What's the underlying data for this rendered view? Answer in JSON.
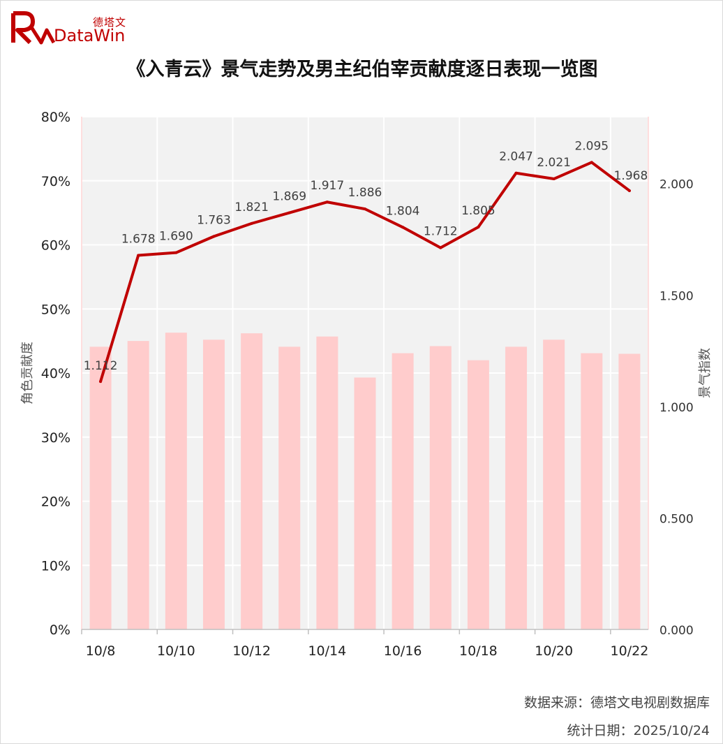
{
  "logo": {
    "cn": "德塔文",
    "en": "DataWin"
  },
  "title": "《入青云》景气走势及男主纪伯宰贡献度逐日表现一览图",
  "source": "数据来源：德塔文电视剧数据库",
  "stat_date": "统计日期：2025/10/24",
  "colors": {
    "bar": "#ffcccc",
    "line": "#c00000",
    "plot_bg": "#f2f2f2"
  },
  "chart_data": {
    "type": "bar+line",
    "categories": [
      "10/8",
      "10/9",
      "10/10",
      "10/11",
      "10/12",
      "10/13",
      "10/14",
      "10/15",
      "10/16",
      "10/17",
      "10/18",
      "10/19",
      "10/20",
      "10/21",
      "10/22"
    ],
    "x_tick_labels": [
      "10/8",
      "10/10",
      "10/12",
      "10/14",
      "10/16",
      "10/18",
      "10/20",
      "10/22"
    ],
    "series": [
      {
        "axis": "left",
        "type": "bar",
        "values": [
          44.1,
          45.0,
          46.3,
          45.2,
          46.2,
          44.1,
          45.7,
          39.3,
          43.1,
          44.2,
          42.0,
          44.1,
          45.2,
          43.1,
          43.0
        ]
      },
      {
        "axis": "right",
        "type": "line",
        "values": [
          1.112,
          1.678,
          1.69,
          1.763,
          1.821,
          1.869,
          1.917,
          1.886,
          1.804,
          1.712,
          1.805,
          2.047,
          2.021,
          2.095,
          1.968
        ],
        "labels": [
          "1.112",
          "1.678",
          "1.690",
          "1.763",
          "1.821",
          "1.869",
          "1.917",
          "1.886",
          "1.804",
          "1.712",
          "1.805",
          "2.047",
          "2.021",
          "2.095",
          "1.968"
        ]
      }
    ],
    "y_left": {
      "label": "角色贡献度",
      "min": 0,
      "max": 80,
      "ticks": [
        "0%",
        "10%",
        "20%",
        "30%",
        "40%",
        "50%",
        "60%",
        "70%",
        "80%"
      ]
    },
    "y_right": {
      "label": "景气指数",
      "min": 0,
      "max": 2.3,
      "ticks": [
        "0.000",
        "0.500",
        "1.000",
        "1.500",
        "2.000"
      ],
      "tick_values": [
        0,
        0.5,
        1.0,
        1.5,
        2.0
      ]
    },
    "grid": true
  }
}
